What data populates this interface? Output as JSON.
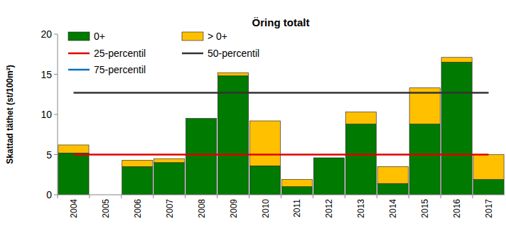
{
  "chart_data": {
    "type": "bar",
    "title": "Öring totalt",
    "y_label": "Skattad täthet (st/100m²)",
    "categories": [
      "2004",
      "2005",
      "2006",
      "2007",
      "2008",
      "2009",
      "2010",
      "2011",
      "2012",
      "2013",
      "2014",
      "2015",
      "2016",
      "2017"
    ],
    "stacked": true,
    "series": [
      {
        "name": "0+",
        "color": "#007a00",
        "values": [
          5.2,
          null,
          3.5,
          4.0,
          9.5,
          14.8,
          3.6,
          1.0,
          4.6,
          8.8,
          1.4,
          8.8,
          16.5,
          1.9
        ]
      },
      {
        "name": "> 0+",
        "color": "#ffc000",
        "values": [
          1.0,
          null,
          0.8,
          0.5,
          null,
          0.4,
          5.6,
          0.9,
          null,
          1.5,
          2.1,
          4.5,
          0.6,
          3.1
        ]
      },
      {
        "name": "25-percentil",
        "type": "line",
        "color": "#e00000",
        "values": [
          5,
          5,
          5,
          5,
          5,
          5,
          5,
          5,
          5,
          5,
          5,
          5,
          5,
          5
        ]
      },
      {
        "name": "50-percentil",
        "type": "line",
        "color": "#333333",
        "values": [
          12.7,
          12.7,
          12.7,
          12.7,
          12.7,
          12.7,
          12.7,
          12.7,
          12.7,
          12.7,
          12.7,
          12.7,
          12.7,
          12.7
        ]
      },
      {
        "name": "75-percentil",
        "type": "line",
        "color": "#0070c0",
        "values": [
          null,
          null,
          null,
          null,
          null,
          null,
          null,
          null,
          null,
          null,
          null,
          null,
          null,
          null
        ]
      }
    ],
    "ylim": [
      0,
      20
    ],
    "yticks": [
      0,
      5,
      10,
      15,
      20
    ],
    "grid": false,
    "legend": "top-left"
  }
}
